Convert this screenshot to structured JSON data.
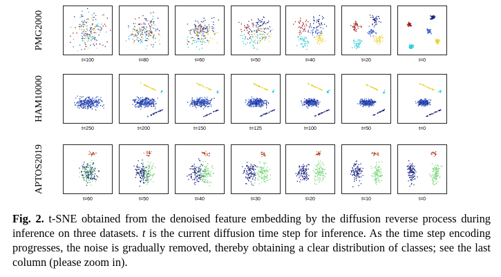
{
  "figure": {
    "rows": [
      {
        "dataset": "PMG2000",
        "panels": [
          "t=100",
          "t=80",
          "t=60",
          "t=50",
          "t=40",
          "t=20",
          "t=0"
        ]
      },
      {
        "dataset": "HAM10000",
        "panels": [
          "t=250",
          "t=200",
          "t=150",
          "t=125",
          "t=100",
          "t=50",
          "t=0"
        ]
      },
      {
        "dataset": "APTOS2019",
        "panels": [
          "t=60",
          "t=50",
          "t=40",
          "t=30",
          "t=20",
          "t=10",
          "t=0"
        ]
      }
    ],
    "class_colors": [
      "#1a237e",
      "#3a5fcd",
      "#20c8d8",
      "#e8d020",
      "#a01818",
      "#7ed67e",
      "#c8782a"
    ]
  },
  "caption": {
    "fig_label": "Fig. 2.",
    "text_1": " t-SNE obtained from the denoised feature embedding by the diffusion reverse process during inference on three datasets. ",
    "var_t": "t",
    "text_2": " is the current diffusion time step for inference. As the time step encoding progresses, the noise is gradually removed, thereby obtaining a clear distribution of classes; see the last column (please zoom in)."
  }
}
